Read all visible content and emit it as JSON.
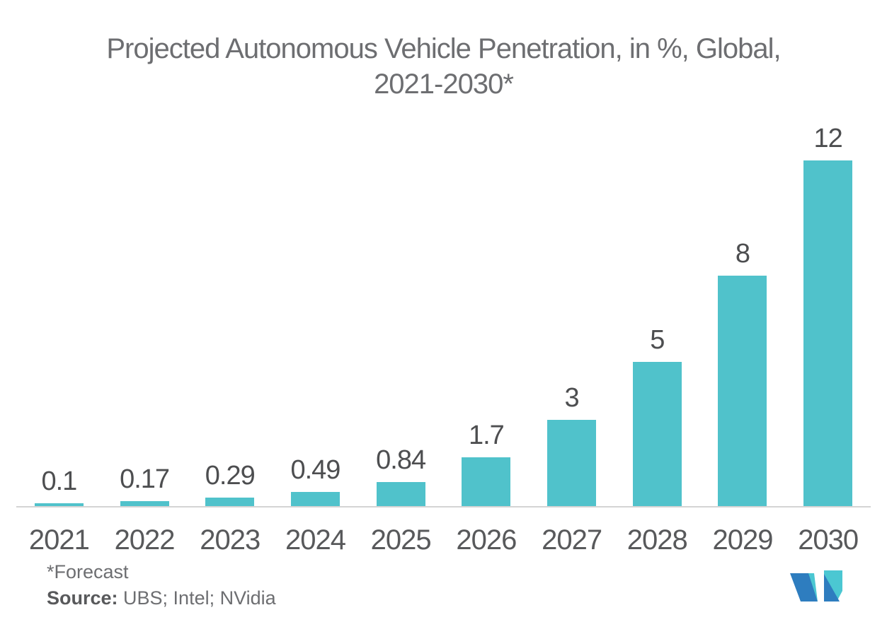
{
  "title": {
    "line1": "Projected Autonomous Vehicle Penetration, in %, Global,",
    "line2": "2021-2030*"
  },
  "chart_data": {
    "type": "bar",
    "title": "Projected Autonomous Vehicle Penetration, in %, Global, 2021-2030*",
    "categories": [
      "2021",
      "2022",
      "2023",
      "2024",
      "2025",
      "2026",
      "2027",
      "2028",
      "2029",
      "2030"
    ],
    "values": [
      0.1,
      0.17,
      0.29,
      0.49,
      0.84,
      1.7,
      3,
      5,
      8,
      12
    ],
    "labels": [
      "0.1",
      "0.17",
      "0.29",
      "0.49",
      "0.84",
      "1.7",
      "3",
      "5",
      "8",
      "12"
    ],
    "xlabel": "",
    "ylabel": "",
    "ylim": [
      0,
      12.3
    ],
    "grid": false,
    "legend": false,
    "bar_color": "#50c2cb",
    "value_label_color": "#4d4e50",
    "tick_label_color": "#58595b",
    "title_color": "#6d6e71",
    "axis_line_color": "#d4d4d4"
  },
  "footer": {
    "forecast_note": "*Forecast",
    "source_label": "Source:",
    "source_text": " UBS; Intel; NVidia"
  },
  "logo": {
    "name": "mordor-intelligence-logo",
    "blue": "#2e7dbf",
    "teal": "#4bc7d2"
  }
}
